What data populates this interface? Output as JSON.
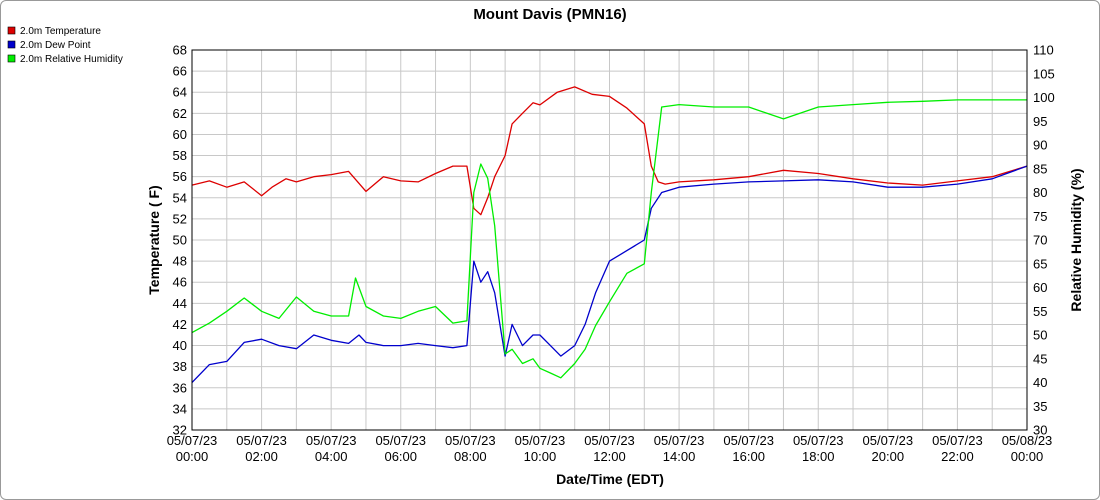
{
  "chart_data": {
    "type": "line",
    "title": "Mount Davis (PMN16)",
    "xlabel": "Date/Time (EDT)",
    "ylabel_left": "Temperature ( F)",
    "ylabel_right": "Relative Humidity (%)",
    "ylim_left": [
      32,
      68
    ],
    "ylim_right": [
      30,
      110
    ],
    "yticks_left": [
      32,
      34,
      36,
      38,
      40,
      42,
      44,
      46,
      48,
      50,
      52,
      54,
      56,
      58,
      60,
      62,
      64,
      66,
      68
    ],
    "yticks_right": [
      30,
      35,
      40,
      45,
      50,
      55,
      60,
      65,
      70,
      75,
      80,
      85,
      90,
      95,
      100,
      105,
      110
    ],
    "xlim_hours": [
      0,
      24
    ],
    "xticks": [
      {
        "date": "05/07/23",
        "time": "00:00"
      },
      {
        "date": "05/07/23",
        "time": "02:00"
      },
      {
        "date": "05/07/23",
        "time": "04:00"
      },
      {
        "date": "05/07/23",
        "time": "06:00"
      },
      {
        "date": "05/07/23",
        "time": "08:00"
      },
      {
        "date": "05/07/23",
        "time": "10:00"
      },
      {
        "date": "05/07/23",
        "time": "12:00"
      },
      {
        "date": "05/07/23",
        "time": "14:00"
      },
      {
        "date": "05/07/23",
        "time": "16:00"
      },
      {
        "date": "05/07/23",
        "time": "18:00"
      },
      {
        "date": "05/07/23",
        "time": "20:00"
      },
      {
        "date": "05/07/23",
        "time": "22:00"
      },
      {
        "date": "05/08/23",
        "time": "00:00"
      }
    ],
    "grid": true,
    "legend_position": "top-left",
    "series": [
      {
        "name": "2.0m Temperature",
        "color": "#dd0000",
        "axis": "left",
        "x": [
          0,
          0.5,
          1,
          1.5,
          2,
          2.3,
          2.7,
          3,
          3.5,
          4,
          4.5,
          5,
          5.5,
          6,
          6.5,
          7,
          7.5,
          7.9,
          8.1,
          8.3,
          8.5,
          8.7,
          9,
          9.2,
          9.5,
          9.8,
          10,
          10.5,
          11,
          11.5,
          12,
          12.5,
          13,
          13.2,
          13.4,
          13.6,
          14,
          15,
          16,
          17,
          18,
          19,
          20,
          21,
          22,
          23,
          24
        ],
        "values": [
          55.2,
          55.6,
          55,
          55.5,
          54.2,
          55,
          55.8,
          55.5,
          56,
          56.2,
          56.5,
          54.6,
          56,
          55.6,
          55.5,
          56.3,
          57,
          57,
          53,
          52.4,
          54,
          56,
          58,
          61,
          62,
          63,
          62.8,
          64,
          64.5,
          63.8,
          63.6,
          62.5,
          61,
          57,
          55.5,
          55.3,
          55.5,
          55.7,
          56,
          56.6,
          56.3,
          55.8,
          55.4,
          55.2,
          55.6,
          56,
          57
        ]
      },
      {
        "name": "2.0m Dew Point",
        "color": "#0000cc",
        "axis": "left",
        "x": [
          0,
          0.5,
          1,
          1.5,
          2,
          2.5,
          3,
          3.5,
          4,
          4.5,
          4.8,
          5,
          5.5,
          6,
          6.5,
          7,
          7.5,
          7.9,
          8.1,
          8.3,
          8.5,
          8.7,
          9,
          9.2,
          9.5,
          9.8,
          10,
          10.3,
          10.6,
          11,
          11.3,
          11.6,
          12,
          12.5,
          13,
          13.2,
          13.5,
          14,
          15,
          16,
          17,
          18,
          19,
          20,
          21,
          22,
          23,
          24
        ],
        "values": [
          36.5,
          38.2,
          38.5,
          40.3,
          40.6,
          40,
          39.7,
          41,
          40.5,
          40.2,
          41,
          40.3,
          40,
          40,
          40.2,
          40,
          39.8,
          40,
          48,
          46,
          47,
          45,
          39,
          42,
          40,
          41,
          41,
          40,
          39,
          40,
          42,
          45,
          48,
          49,
          50,
          53,
          54.5,
          55,
          55.3,
          55.5,
          55.6,
          55.7,
          55.5,
          55,
          55,
          55.3,
          55.8,
          57
        ]
      },
      {
        "name": "2.0m Relative Humidity",
        "color": "#00ee00",
        "axis": "right",
        "x": [
          0,
          0.5,
          1,
          1.5,
          2,
          2.5,
          3,
          3.5,
          4,
          4.5,
          4.7,
          5,
          5.5,
          6,
          6.5,
          7,
          7.5,
          7.9,
          8.1,
          8.3,
          8.5,
          8.7,
          9,
          9.2,
          9.5,
          9.8,
          10,
          10.3,
          10.6,
          11,
          11.3,
          11.6,
          12,
          12.5,
          13,
          13.2,
          13.5,
          14,
          15,
          16,
          17,
          18,
          19,
          20,
          21,
          22,
          23,
          24
        ],
        "values": [
          50.5,
          52.5,
          55,
          57.8,
          55,
          53.5,
          58,
          55,
          54,
          54,
          62,
          56,
          54,
          53.5,
          55,
          56,
          52.5,
          53,
          80,
          86,
          83,
          73,
          46,
          47,
          44,
          45,
          43,
          42,
          41,
          44,
          47,
          52,
          57,
          63,
          65,
          80,
          98,
          98.5,
          98,
          98,
          95.5,
          98,
          98.5,
          99,
          99.2,
          99.5,
          99.5,
          99.5
        ]
      }
    ]
  }
}
